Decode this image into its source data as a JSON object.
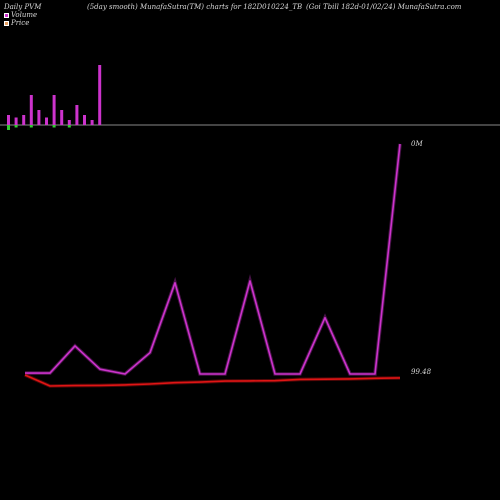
{
  "header": {
    "title": "Daily PVM",
    "center": "(5day smooth) MunafaSutra(TM) charts for 182D010224_TB",
    "right": "(Goi  Tbill 182d-01/02/24) MunafaSutra.com"
  },
  "legend": {
    "volume_label": "Volume",
    "price_label": "Price"
  },
  "colors": {
    "background": "#000000",
    "volume_line": "#cc33cc",
    "price_line": "#e01515",
    "volume_bar": "#cc33cc",
    "volume_bar_down": "#33cc33",
    "baseline": "#888888",
    "text": "#d8d8d8"
  },
  "chart_data": {
    "type": "line",
    "x": [
      1,
      2,
      3,
      4,
      5,
      6,
      7,
      8,
      9,
      10,
      11,
      12,
      13,
      14,
      15,
      16
    ],
    "series": [
      {
        "name": "Volume",
        "values": [
          2,
          2,
          30,
          6,
          1,
          23,
          95,
          1,
          1,
          97,
          1,
          1,
          59,
          1,
          1,
          238
        ]
      },
      {
        "name": "Price",
        "values": [
          99.48,
          99.42,
          99.422,
          99.423,
          99.426,
          99.431,
          99.438,
          99.441,
          99.447,
          99.448,
          99.449,
          99.456,
          99.457,
          99.459,
          99.462,
          99.464
        ]
      }
    ],
    "volume_bars": [
      4,
      3,
      4,
      12,
      6,
      3,
      12,
      6,
      2,
      8,
      4,
      2,
      24
    ],
    "volume_bars_down": [
      2,
      1,
      0,
      1,
      0,
      0,
      1,
      0,
      1,
      0,
      0,
      0,
      0
    ],
    "labels": {
      "volume_last": "0M",
      "price_last": "99.48"
    }
  }
}
